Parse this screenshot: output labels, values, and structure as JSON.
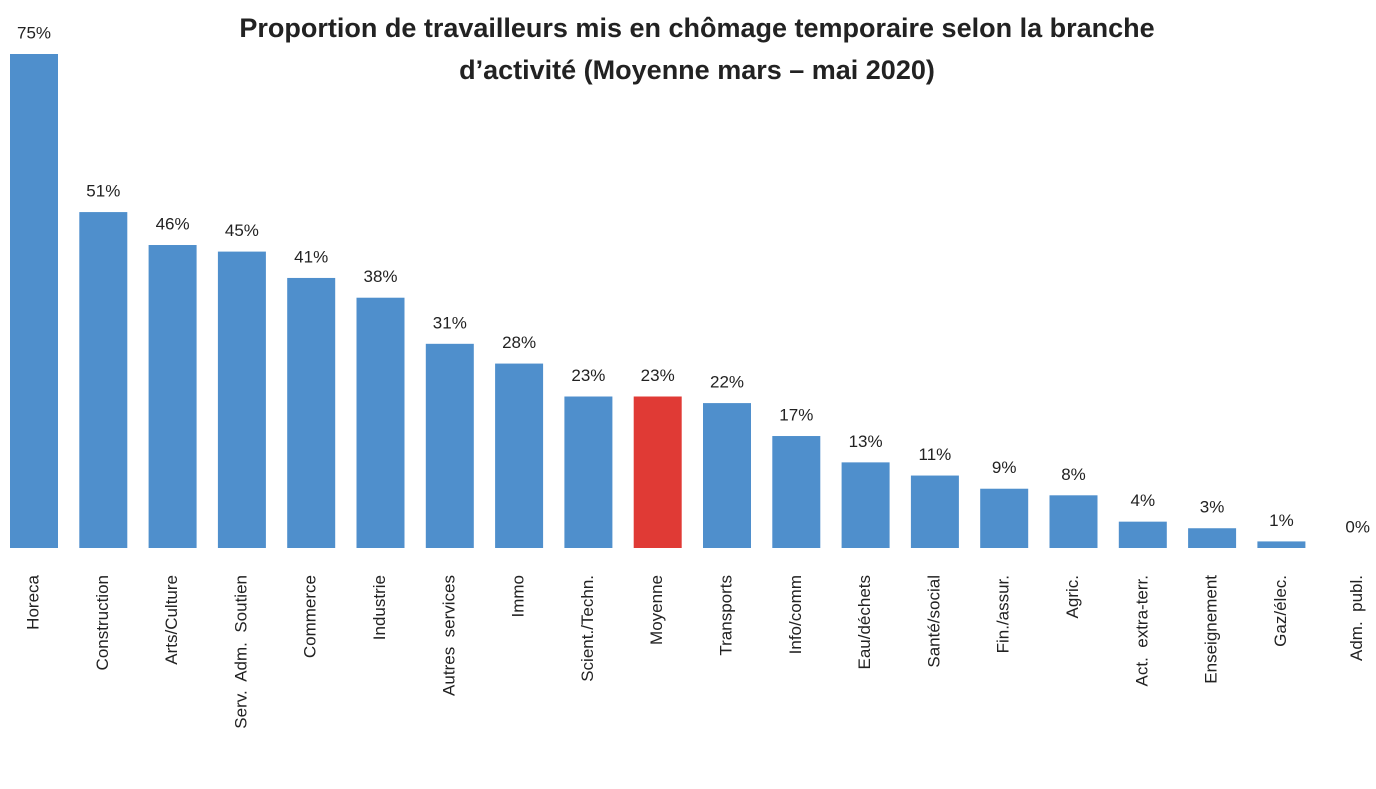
{
  "chart_data": {
    "type": "bar",
    "title": [
      "Proportion de travailleurs mis en chômage temporaire selon la branche",
      "d’activité (Moyenne mars – mai 2020)"
    ],
    "categories": [
      "Horeca",
      "Construction",
      "Arts/Culture",
      "Serv.  Adm.  Soutien",
      "Commerce",
      "Industrie",
      "Autres  services",
      "Immo",
      "Scient./Techn.",
      "Moyenne",
      "Transports",
      "Info/comm",
      "Eau/déchets",
      "Santé/social",
      "Fin./assur.",
      "Agric.",
      "Act.  extra-terr.",
      "Enseignement",
      "Gaz/élec.",
      "Adm.  publ."
    ],
    "values": [
      75,
      51,
      46,
      45,
      41,
      38,
      31,
      28,
      23,
      23,
      22,
      17,
      13,
      11,
      9,
      8,
      4,
      3,
      1,
      0
    ],
    "value_labels": [
      "75%",
      "51%",
      "46%",
      "45%",
      "41%",
      "38%",
      "31%",
      "28%",
      "23%",
      "23%",
      "22%",
      "17%",
      "13%",
      "11%",
      "9%",
      "8%",
      "4%",
      "3%",
      "1%",
      "0%"
    ],
    "colors": [
      "#4f8fcc",
      "#4f8fcc",
      "#4f8fcc",
      "#4f8fcc",
      "#4f8fcc",
      "#4f8fcc",
      "#4f8fcc",
      "#4f8fcc",
      "#4f8fcc",
      "#e03a35",
      "#4f8fcc",
      "#4f8fcc",
      "#4f8fcc",
      "#4f8fcc",
      "#4f8fcc",
      "#4f8fcc",
      "#4f8fcc",
      "#4f8fcc",
      "#4f8fcc",
      "#4f8fcc"
    ],
    "ylim": [
      0,
      75
    ]
  }
}
